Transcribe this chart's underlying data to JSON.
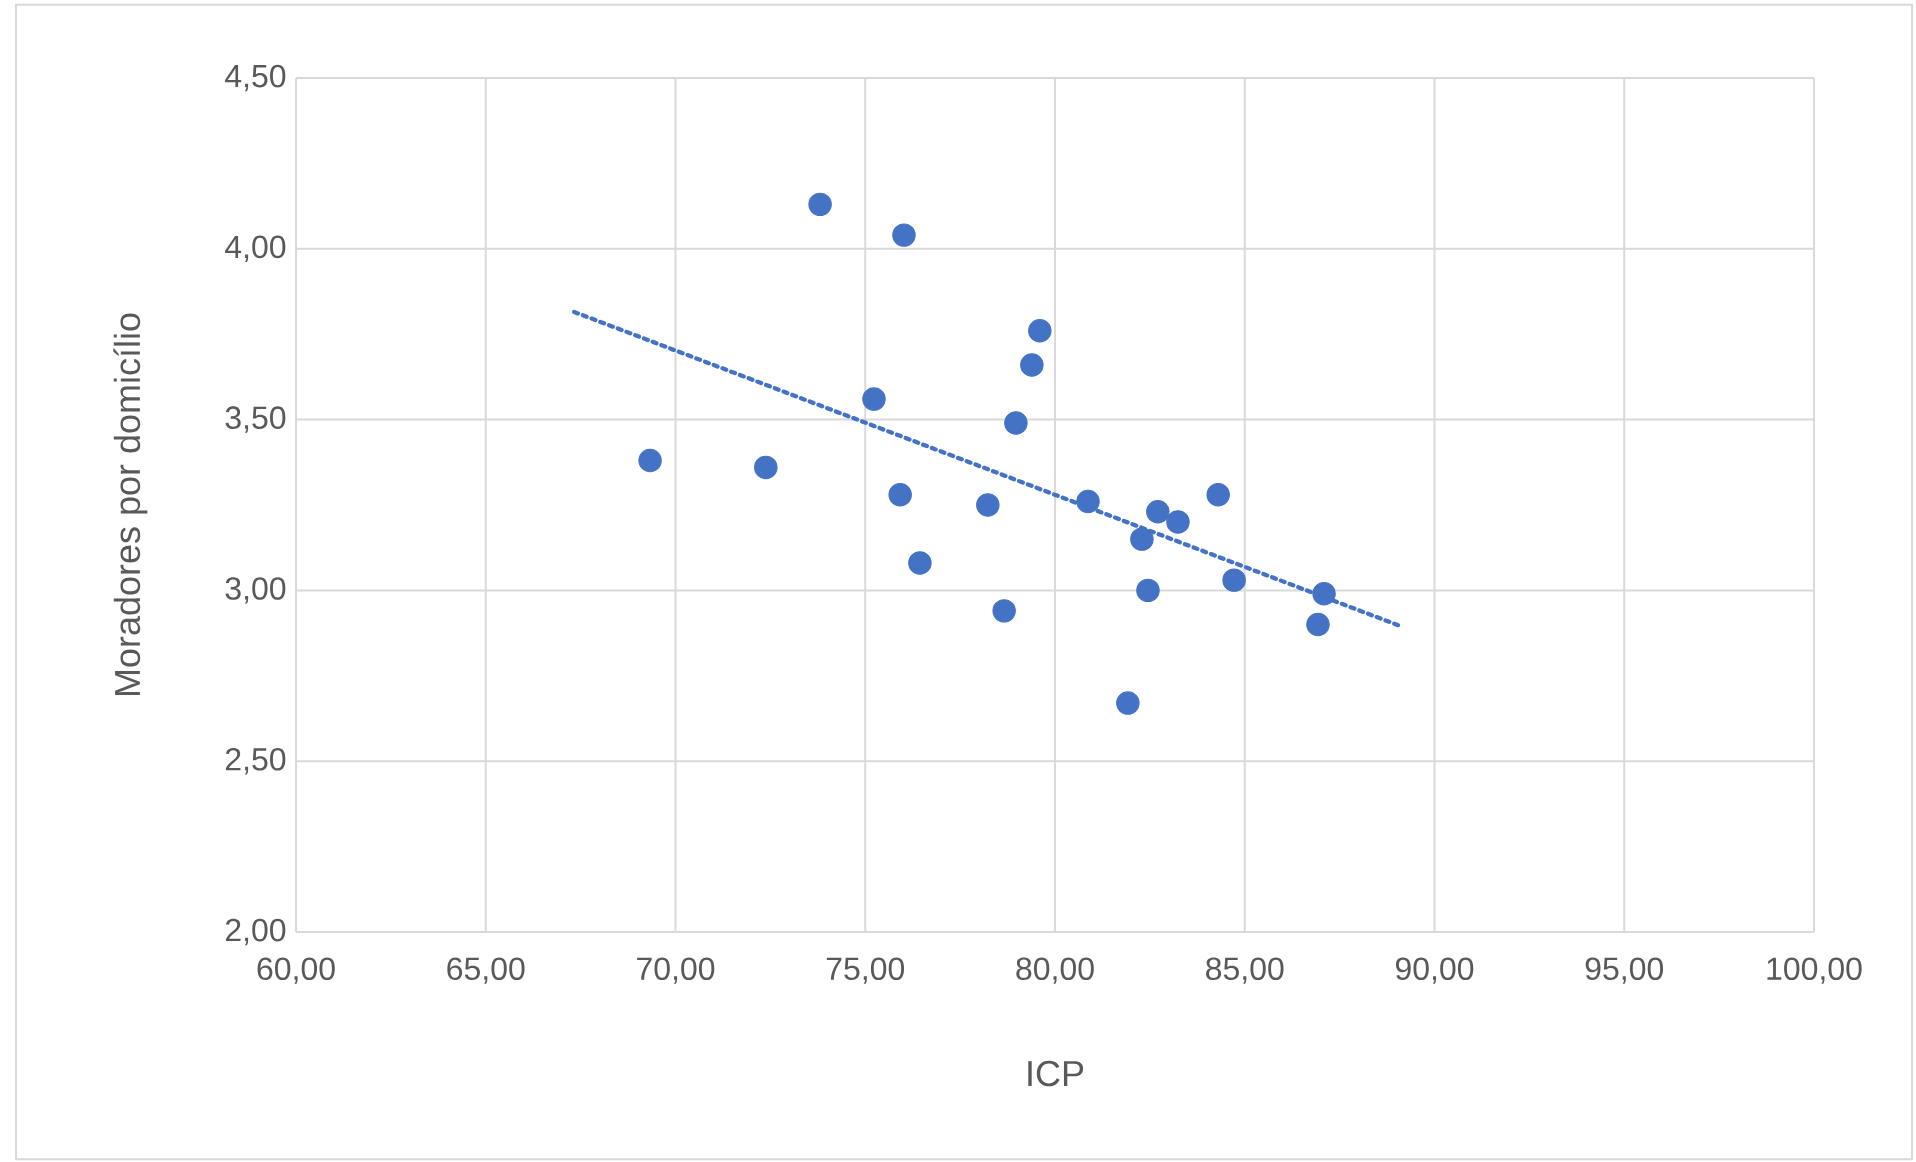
{
  "chart_data": {
    "type": "scatter",
    "xlabel": "ICP",
    "ylabel": "Moradores por domicílio",
    "series": [
      {
        "color": "#4472c4",
        "marker": "circle",
        "x": [
          69.33,
          72.38,
          73.81,
          75.23,
          76.02,
          75.92,
          76.44,
          78.23,
          78.66,
          78.97,
          79.39,
          79.6,
          80.87,
          81.92,
          82.29,
          82.45,
          82.71,
          83.24,
          84.3,
          84.72,
          87.09,
          86.93
        ],
        "values": [
          3.38,
          3.36,
          4.13,
          3.56,
          4.04,
          3.28,
          3.08,
          3.25,
          2.94,
          3.49,
          3.66,
          3.76,
          3.26,
          2.67,
          3.15,
          3.0,
          3.23,
          3.2,
          3.28,
          3.03,
          2.99,
          2.9
        ]
      },
      {
        "type": "line",
        "color": "#4472c4",
        "marker": "none",
        "line_style": "dotted",
        "x": [
          67.33,
          89.09
        ],
        "values": [
          3.815,
          2.896
        ]
      }
    ],
    "xlim": [
      60,
      100
    ],
    "xticks": [
      {
        "value": 60,
        "label": "60,00"
      },
      {
        "value": 65,
        "label": "65,00"
      },
      {
        "value": 70,
        "label": "70,00"
      },
      {
        "value": 75,
        "label": "75,00"
      },
      {
        "value": 80,
        "label": "80,00"
      },
      {
        "value": 85,
        "label": "85,00"
      },
      {
        "value": 90,
        "label": "90,00"
      },
      {
        "value": 95,
        "label": "95,00"
      },
      {
        "value": 100,
        "label": "100,00"
      }
    ],
    "ylim": [
      2,
      4.5
    ],
    "yticks": [
      {
        "value": 2,
        "label": "2,00"
      },
      {
        "value": 2.5,
        "label": "2,50"
      },
      {
        "value": 3,
        "label": "3,00"
      },
      {
        "value": 3.5,
        "label": "3,50"
      },
      {
        "value": 4,
        "label": "4,00"
      },
      {
        "value": 4.5,
        "label": "4,50"
      }
    ],
    "grid": true
  }
}
